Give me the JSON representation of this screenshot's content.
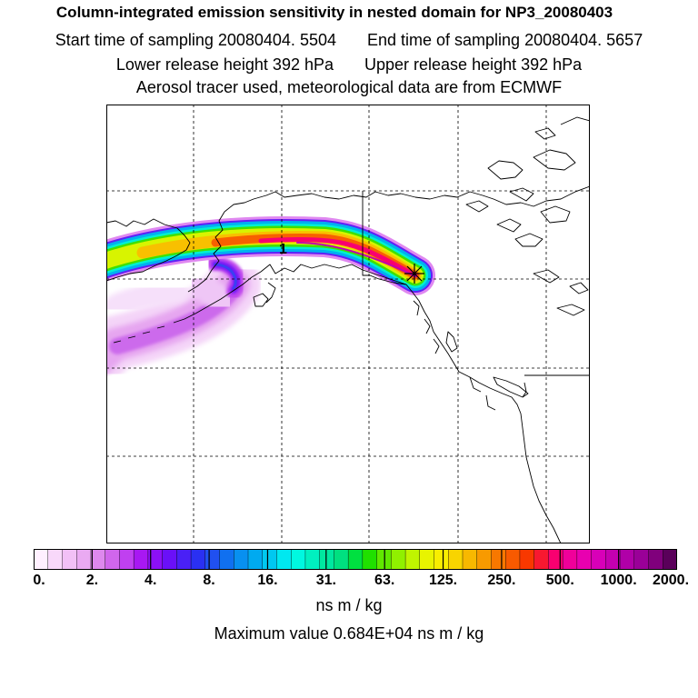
{
  "title": "Column-integrated emission sensitivity in nested domain for NP3_20080403",
  "sampling": {
    "start": "Start time of sampling 20080404.  5504",
    "end": "End time of sampling 20080404.  5657"
  },
  "release": {
    "lower": "Lower release height  392 hPa",
    "upper": "Upper release height  392 hPa"
  },
  "tracer_info": "Aerosol tracer used, meteorological data are from ECMWF",
  "map": {
    "label": "1",
    "release_marker": "asterisk-icon"
  },
  "colorbar": {
    "tick_labels": [
      "0.",
      "2.",
      "4.",
      "8.",
      "16.",
      "31.",
      "63.",
      "125.",
      "250.",
      "500.",
      "1000.",
      "2000."
    ],
    "colors": [
      "#fff0ff",
      "#f8d8fa",
      "#f2c0f6",
      "#eaaaf2",
      "#de88ee",
      "#d066ec",
      "#c040f0",
      "#a818f2",
      "#8c10f6",
      "#6a10f8",
      "#4a20f6",
      "#2a30f2",
      "#2050f0",
      "#1070f0",
      "#0890f0",
      "#00aaf0",
      "#00c8f0",
      "#00e8f0",
      "#00f8e0",
      "#00f0c0",
      "#00e8a0",
      "#00e080",
      "#00e040",
      "#20e000",
      "#60e800",
      "#90f000",
      "#c0f400",
      "#e8f400",
      "#f8ee00",
      "#f8d400",
      "#f8b800",
      "#f89a00",
      "#f87800",
      "#f85a00",
      "#f83800",
      "#f81830",
      "#f80070",
      "#f0009a",
      "#e800b0",
      "#d800b8",
      "#c400b0",
      "#b000a8",
      "#9a0098",
      "#80007c",
      "#5a005a"
    ],
    "units": "ns m / kg"
  },
  "maximum": "Maximum value  0.684E+04 ns m / kg"
}
